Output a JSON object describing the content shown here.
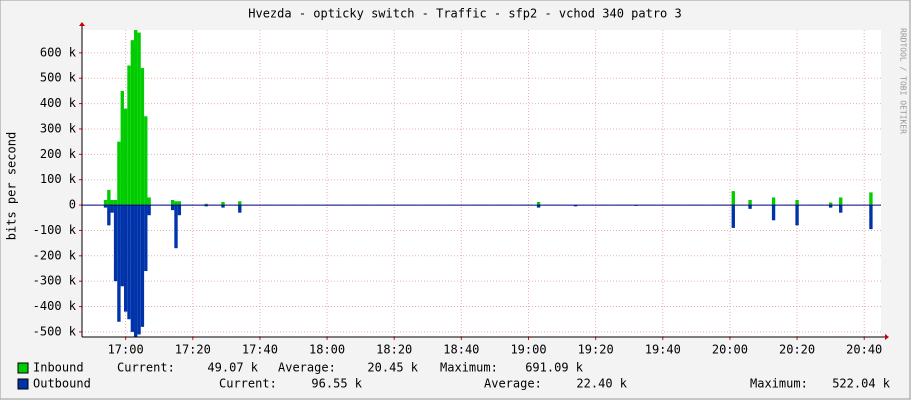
{
  "chart_data": {
    "type": "bar",
    "title": "Hvezda - opticky switch - Traffic - sfp2 - vchod 340 patro 3",
    "y_label": "bits per second",
    "watermark": "RRDTOOL / TOBI OETIKER",
    "grid": true,
    "x": [
      "16:53",
      "16:54",
      "16:55",
      "16:56",
      "16:57",
      "16:58",
      "16:59",
      "17:00",
      "17:01",
      "17:02",
      "17:03",
      "17:04",
      "17:05",
      "17:06",
      "17:07",
      "17:08",
      "17:13",
      "17:14",
      "17:15",
      "17:16",
      "17:17",
      "17:24",
      "17:29",
      "17:34",
      "17:35",
      "19:03",
      "19:14",
      "19:32",
      "20:01",
      "20:06",
      "20:13",
      "20:20",
      "20:30",
      "20:33",
      "20:42"
    ],
    "xlim": [
      "16:47",
      "20:45"
    ],
    "xticks": [
      "17:00",
      "17:20",
      "17:40",
      "18:00",
      "18:20",
      "18:40",
      "19:00",
      "19:20",
      "19:40",
      "20:00",
      "20:20",
      "20:40"
    ],
    "ylim": [
      -520000,
      690000
    ],
    "yticks": [
      {
        "value": -500000,
        "label": "-500 k"
      },
      {
        "value": -400000,
        "label": "-400 k"
      },
      {
        "value": -300000,
        "label": "-300 k"
      },
      {
        "value": -200000,
        "label": "-200 k"
      },
      {
        "value": -100000,
        "label": "-100 k"
      },
      0,
      {
        "value": 100000,
        "label": "100 k"
      },
      {
        "value": 200000,
        "label": "200 k"
      },
      {
        "value": 300000,
        "label": "300 k"
      },
      {
        "value": 400000,
        "label": "400 k"
      },
      {
        "value": 500000,
        "label": "500 k"
      },
      {
        "value": 600000,
        "label": "600 k"
      }
    ],
    "stat_names": [
      "Current:",
      "Average:",
      "Maximum:"
    ],
    "series": [
      {
        "name": "Inbound",
        "color": "#00cc00",
        "values": [
          0,
          20000,
          60000,
          20000,
          20000,
          250000,
          450000,
          380000,
          550000,
          650000,
          690000,
          680000,
          540000,
          350000,
          30000,
          0,
          0,
          20000,
          15000,
          15000,
          0,
          5000,
          12000,
          15000,
          0,
          12000,
          0,
          0,
          55000,
          20000,
          30000,
          20000,
          10000,
          30000,
          50000
        ],
        "stats": [
          {
            "value": 49070,
            "label": "49.07 k"
          },
          {
            "value": 20450,
            "label": "20.45 k"
          },
          {
            "value": 691090,
            "label": "691.09 k"
          }
        ]
      },
      {
        "name": "Outbound",
        "color": "#0033aa",
        "values": [
          0,
          -10000,
          -80000,
          -30000,
          -300000,
          -460000,
          -320000,
          -420000,
          -450000,
          -500000,
          -520000,
          -510000,
          -480000,
          -260000,
          -40000,
          0,
          0,
          -20000,
          -170000,
          -40000,
          0,
          -5000,
          -10000,
          -30000,
          0,
          -10000,
          -5000,
          -3000,
          -90000,
          -15000,
          -60000,
          -80000,
          -10000,
          -30000,
          -95000
        ],
        "stats": [
          {
            "value": 96550,
            "label": "96.55 k"
          },
          {
            "value": 22400,
            "label": "22.40 k"
          },
          {
            "value": 522040,
            "label": "522.04 k"
          }
        ]
      }
    ]
  }
}
